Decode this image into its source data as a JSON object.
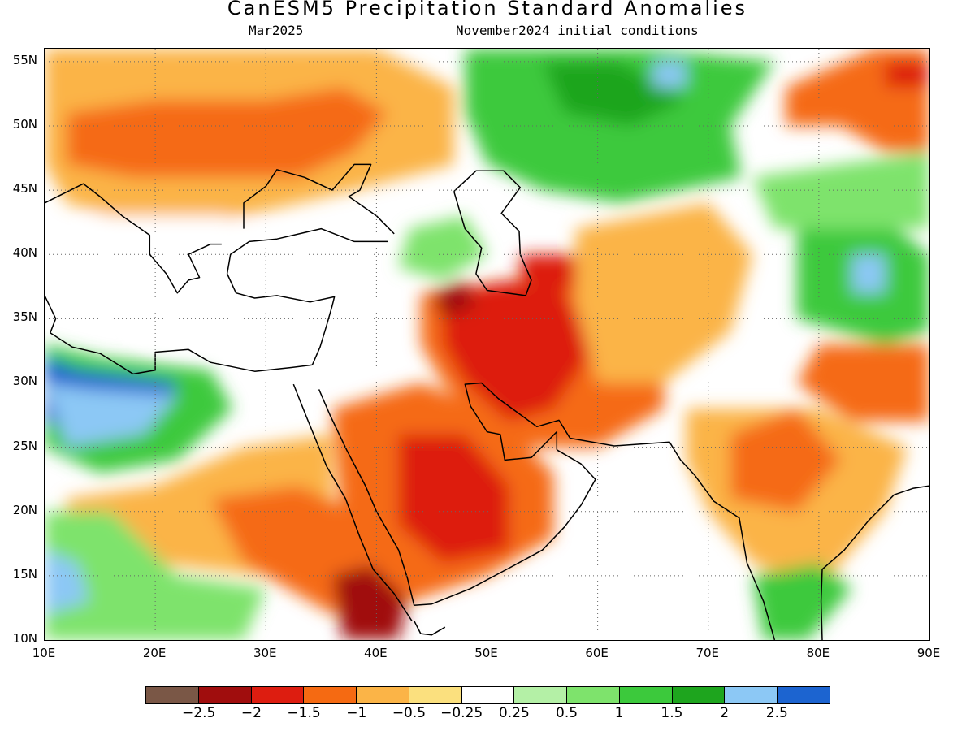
{
  "title": "CanESM5 Precipitation Standard Anomalies",
  "subtitle_left": "Mar2025",
  "subtitle_right": "November2024 initial conditions",
  "map": {
    "lon_range": [
      10,
      90
    ],
    "lat_range": [
      10,
      56
    ],
    "lon_ticks": [
      "10E",
      "20E",
      "30E",
      "40E",
      "50E",
      "60E",
      "70E",
      "80E",
      "90E"
    ],
    "lat_ticks": [
      "55N",
      "50N",
      "45N",
      "40N",
      "35N",
      "30N",
      "25N",
      "20N",
      "15N",
      "10N"
    ],
    "gridlines": "dotted",
    "palette": {
      "brown": "#7a5746",
      "darkred": "#a00d0d",
      "red": "#dd1d10",
      "orange": "#f56a12",
      "lightorange": "#fbb447",
      "yellow": "#fbe07e",
      "white": "#ffffff",
      "palegreen": "#b4f0a6",
      "lightgreen": "#7ee36c",
      "green": "#3cc93c",
      "darkgreen": "#1ea51e",
      "lightblue": "#8cc8f5",
      "blue": "#1c64d0"
    }
  },
  "colorbar": {
    "colors": [
      "#7a5746",
      "#a00d0d",
      "#dd1d10",
      "#f56a12",
      "#fbb447",
      "#fbe07e",
      "#ffffff",
      "#b4f0a6",
      "#7ee36c",
      "#3cc93c",
      "#1ea51e",
      "#8cc8f5",
      "#1c64d0"
    ],
    "labels": [
      "−2.5",
      "−2",
      "−1.5",
      "−1",
      "−0.5",
      "−0.25",
      "0.25",
      "0.5",
      "1",
      "1.5",
      "2",
      "2.5"
    ]
  }
}
